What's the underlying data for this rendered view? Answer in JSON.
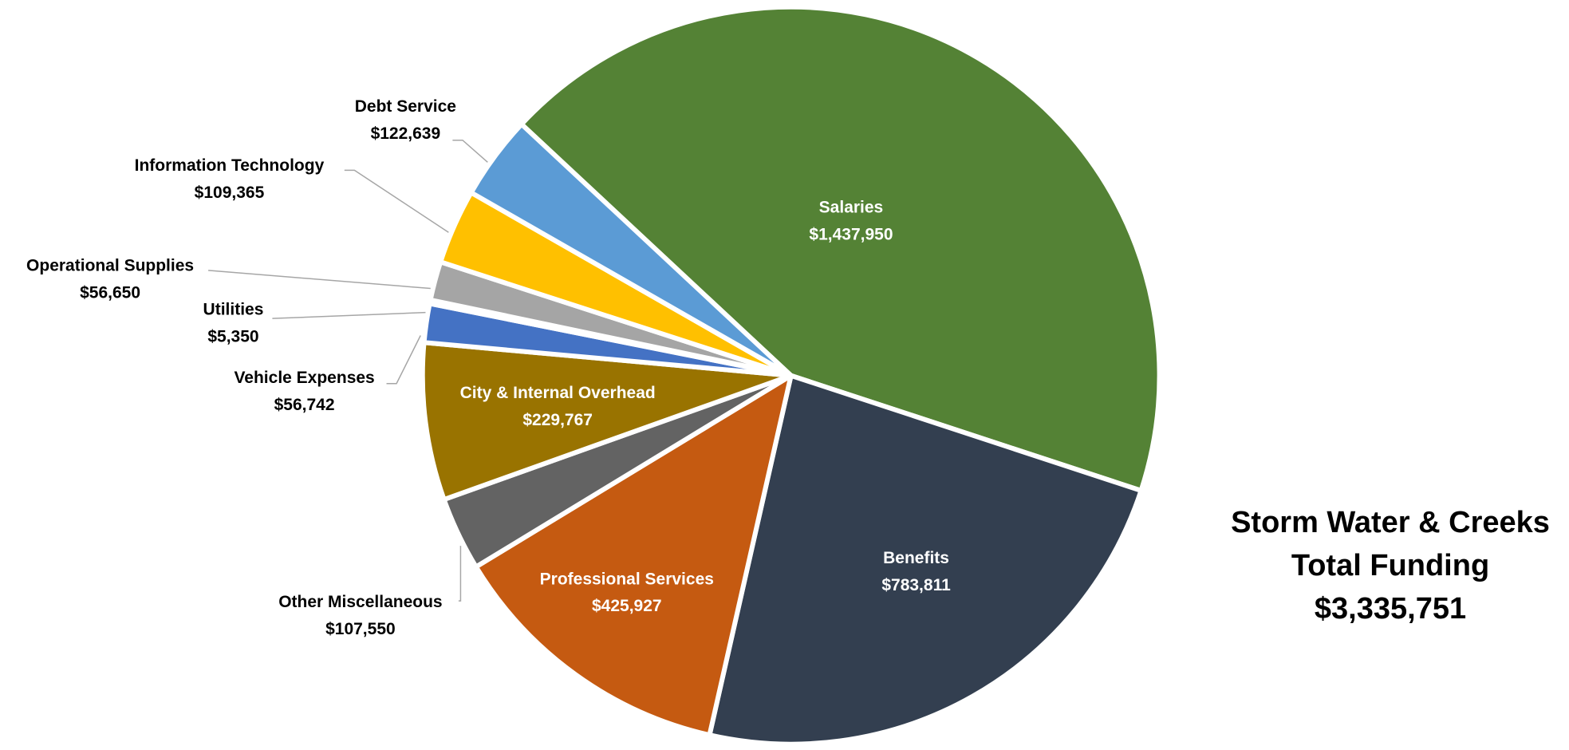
{
  "chart_data": {
    "type": "pie",
    "title_lines": [
      "Storm Water & Creeks",
      "Total Funding",
      "$3,335,751"
    ],
    "categories": [
      "Salaries",
      "Benefits",
      "Professional Services",
      "Other Miscellaneous",
      "City & Internal Overhead",
      "Vehicle Expenses",
      "Utilities",
      "Operational Supplies",
      "Information Technology",
      "Debt Service"
    ],
    "values": [
      1437950,
      783811,
      425927,
      107550,
      229767,
      56742,
      5350,
      56650,
      109365,
      122639
    ],
    "value_labels": [
      "$1,437,950",
      "$783,811",
      "$425,927",
      "$107,550",
      "$229,767",
      "$56,742",
      "$5,350",
      "$56,650",
      "$109,365",
      "$122,639"
    ],
    "colors": [
      "#548235",
      "#333f50",
      "#c55a11",
      "#636363",
      "#997300",
      "#4472c4",
      "#264478",
      "#a5a5a5",
      "#ffc000",
      "#5b9bd5"
    ]
  }
}
